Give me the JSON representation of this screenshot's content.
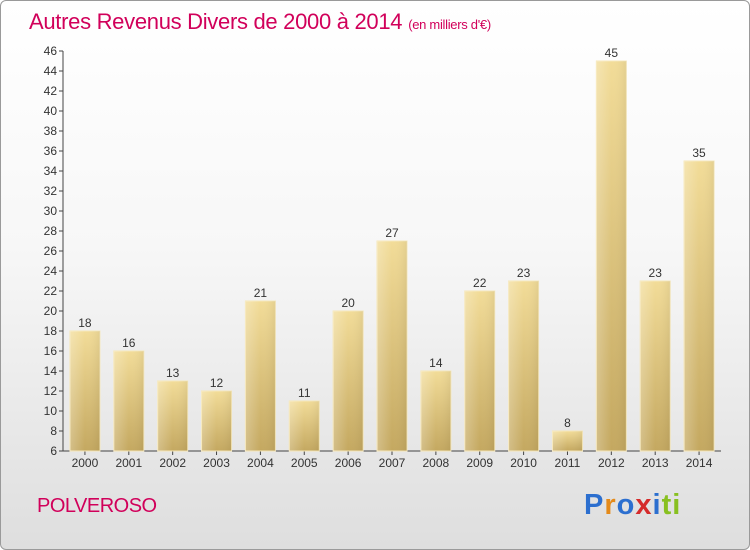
{
  "title": "Autres Revenus Divers de 2000 à 2014",
  "unit": "(en milliers d'€)",
  "place": "POLVEROSO",
  "logo": [
    "P",
    "r",
    "o",
    "x",
    "i",
    "ti"
  ],
  "colors": {
    "title": "#d1005a",
    "bar_top": "#f2dc98",
    "bar_bottom": "#c4a860"
  },
  "chart_data": {
    "type": "bar",
    "title": "Autres Revenus Divers de 2000 à 2014",
    "subtitle": "(en milliers d'€)",
    "categories": [
      "2000",
      "2001",
      "2002",
      "2003",
      "2004",
      "2005",
      "2006",
      "2007",
      "2008",
      "2009",
      "2010",
      "2011",
      "2012",
      "2013",
      "2014"
    ],
    "values": [
      18,
      16,
      13,
      12,
      21,
      11,
      20,
      27,
      14,
      22,
      23,
      8,
      45,
      23,
      35
    ],
    "ylim": [
      6,
      46
    ],
    "yticks": [
      6,
      8,
      10,
      12,
      14,
      16,
      18,
      20,
      22,
      24,
      26,
      28,
      30,
      32,
      34,
      36,
      38,
      40,
      42,
      44,
      46
    ],
    "grid": false,
    "xlabel": "",
    "ylabel": ""
  }
}
